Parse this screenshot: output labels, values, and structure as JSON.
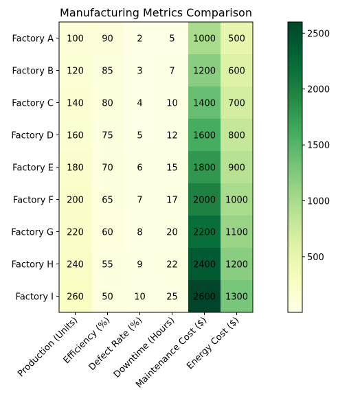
{
  "chart_data": {
    "type": "heatmap",
    "title": "Manufacturing Metrics Comparison",
    "xlabel": "",
    "ylabel": "",
    "rows": [
      "Factory A",
      "Factory B",
      "Factory C",
      "Factory D",
      "Factory E",
      "Factory F",
      "Factory G",
      "Factory H",
      "Factory I"
    ],
    "columns": [
      "Production (Units)",
      "Efficiency (%)",
      "Defect Rate (%)",
      "Downtime (Hours)",
      "Maintenance Cost ($)",
      "Energy Cost ($)"
    ],
    "values": [
      [
        100,
        90,
        2,
        5,
        1000,
        500
      ],
      [
        120,
        85,
        3,
        7,
        1200,
        600
      ],
      [
        140,
        80,
        4,
        10,
        1400,
        700
      ],
      [
        160,
        75,
        5,
        12,
        1600,
        800
      ],
      [
        180,
        70,
        6,
        15,
        1800,
        900
      ],
      [
        200,
        65,
        7,
        17,
        2000,
        1000
      ],
      [
        220,
        60,
        8,
        20,
        2200,
        1100
      ],
      [
        240,
        55,
        9,
        22,
        2400,
        1200
      ],
      [
        260,
        50,
        10,
        25,
        2600,
        1300
      ]
    ],
    "colormap": "YlGn",
    "colorbar": {
      "range": [
        2,
        2600
      ],
      "ticks": [
        500,
        1000,
        1500,
        2000,
        2500
      ]
    },
    "colors": {
      "min": "#ffffe5",
      "max": "#004529"
    }
  }
}
